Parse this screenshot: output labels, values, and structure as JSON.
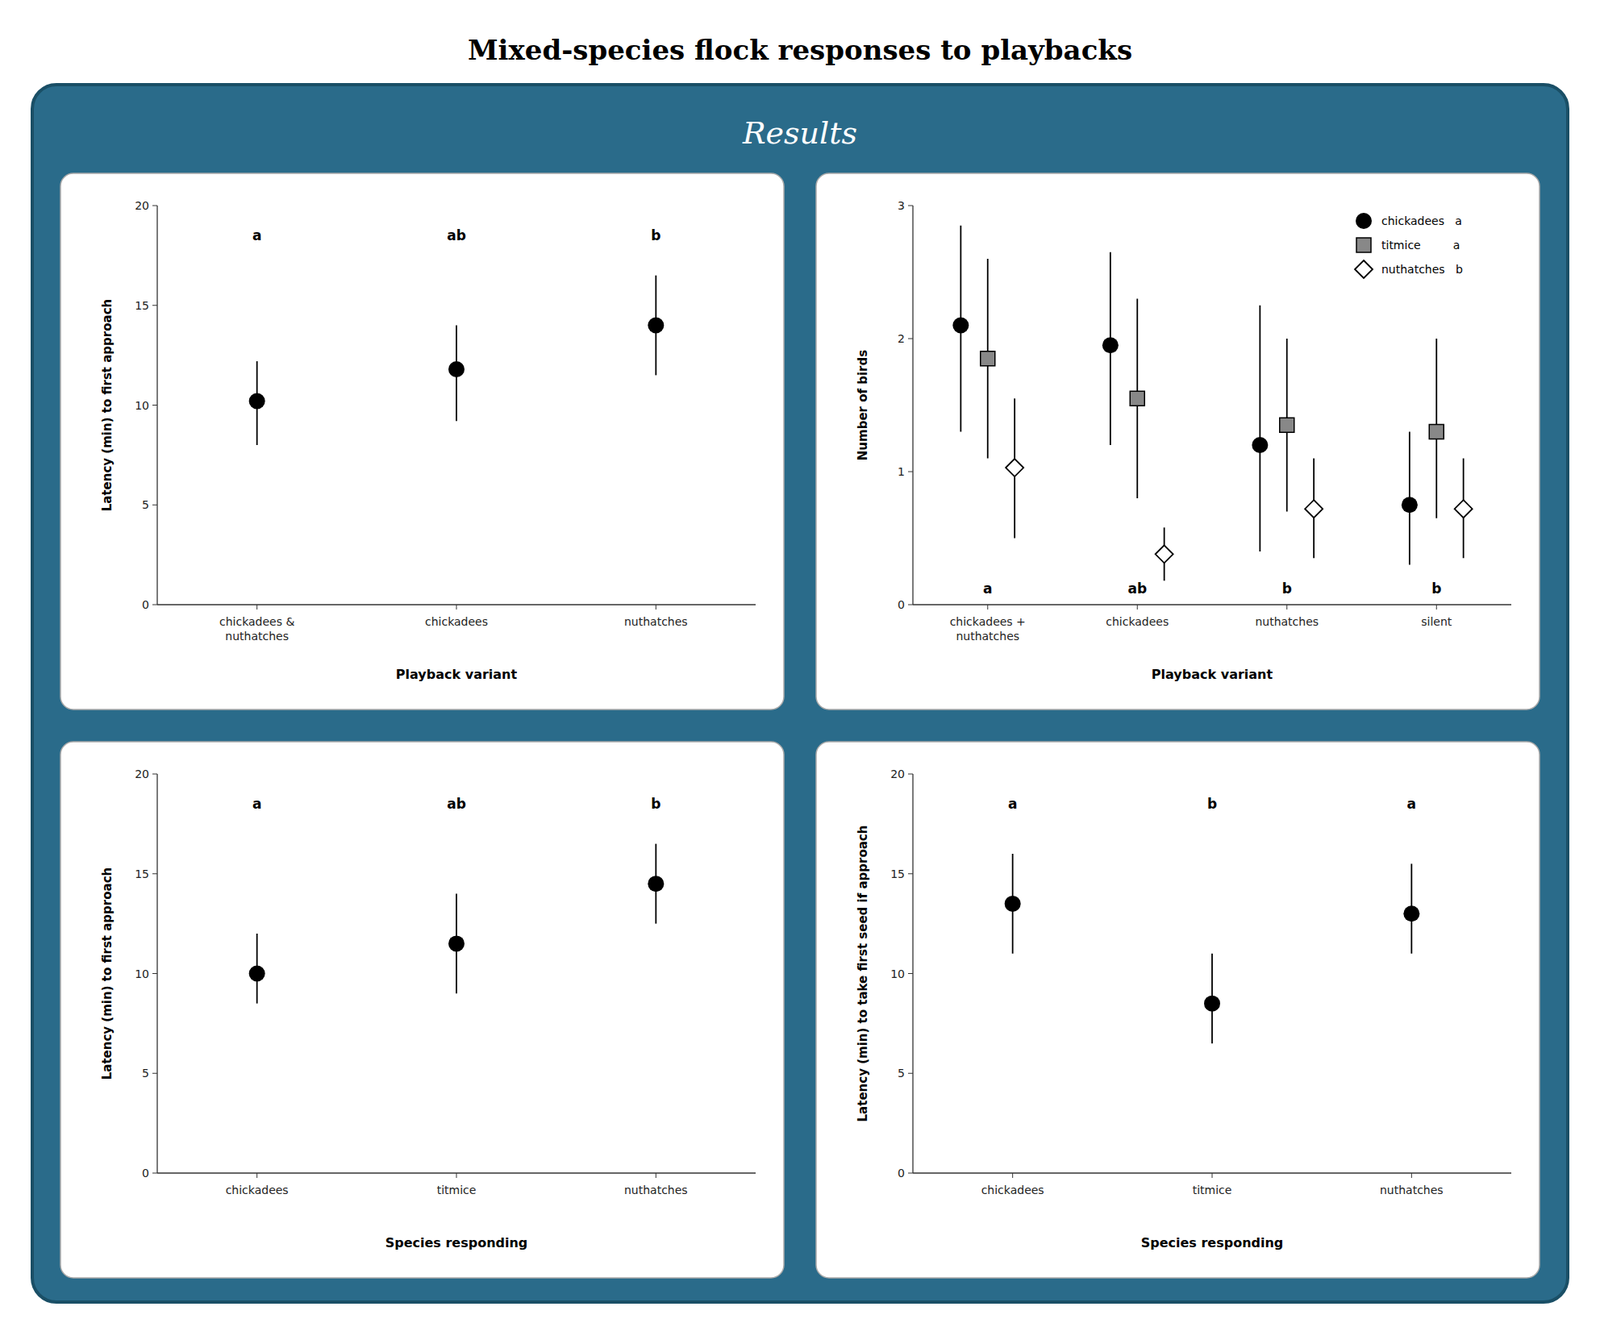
{
  "title": "Mixed-species flock responses to playbacks",
  "subtitle": "Results",
  "chart_data": [
    {
      "type": "errorbar",
      "xlabel": "Playback variant",
      "ylabel": "Latency (min) to first approach",
      "ylim": [
        0,
        20
      ],
      "yticks": [
        0,
        5,
        10,
        15,
        20
      ],
      "grid": false,
      "categories": [
        "chickadees &\nnuthatches",
        "chickadees",
        "nuthatches"
      ],
      "series": [
        {
          "values": [
            10.2,
            11.8,
            14.0
          ],
          "ci_low": [
            8.0,
            9.2,
            11.5
          ],
          "ci_high": [
            12.2,
            14.0,
            16.5
          ],
          "marker": "circle",
          "color": "#000000"
        }
      ],
      "annotations": [
        {
          "text": "a",
          "y": 18.5
        },
        {
          "text": "ab",
          "y": 18.5
        },
        {
          "text": "b",
          "y": 18.5
        }
      ]
    },
    {
      "type": "errorbar",
      "xlabel": "Playback variant",
      "ylabel": "Number of birds",
      "ylim": [
        0,
        3
      ],
      "yticks": [
        0,
        1,
        2,
        3
      ],
      "grid": false,
      "legend": "upper right",
      "categories": [
        "chickadees +\nnuthatches",
        "chickadees",
        "nuthatches",
        "silent"
      ],
      "series": [
        {
          "name": "chickadees   a",
          "values": [
            2.1,
            1.95,
            1.2,
            0.75
          ],
          "ci_low": [
            1.3,
            1.2,
            0.4,
            0.3
          ],
          "ci_high": [
            2.85,
            2.65,
            2.25,
            1.3
          ],
          "marker": "circle",
          "color": "#000000"
        },
        {
          "name": "titmice         a",
          "values": [
            1.85,
            1.55,
            1.35,
            1.3
          ],
          "ci_low": [
            1.1,
            0.8,
            0.7,
            0.65
          ],
          "ci_high": [
            2.6,
            2.3,
            2.0,
            2.0
          ],
          "marker": "square",
          "color": "#888888"
        },
        {
          "name": "nuthatches   b",
          "values": [
            1.03,
            0.38,
            0.72,
            0.72
          ],
          "ci_low": [
            0.5,
            0.18,
            0.35,
            0.35
          ],
          "ci_high": [
            1.55,
            0.58,
            1.1,
            1.1
          ],
          "marker": "diamond",
          "color": "#ffffff"
        }
      ],
      "annotations": [
        {
          "text": "a",
          "y": 0.12
        },
        {
          "text": "ab",
          "y": 0.12
        },
        {
          "text": "b",
          "y": 0.12
        },
        {
          "text": "b",
          "y": 0.12
        }
      ]
    },
    {
      "type": "errorbar",
      "xlabel": "Species responding",
      "ylabel": "Latency (min) to first approach",
      "ylim": [
        0,
        20
      ],
      "yticks": [
        0,
        5,
        10,
        15,
        20
      ],
      "grid": false,
      "categories": [
        "chickadees",
        "titmice",
        "nuthatches"
      ],
      "series": [
        {
          "values": [
            10.0,
            11.5,
            14.5
          ],
          "ci_low": [
            8.5,
            9.0,
            12.5
          ],
          "ci_high": [
            12.0,
            14.0,
            16.5
          ],
          "marker": "circle",
          "color": "#000000"
        }
      ],
      "annotations": [
        {
          "text": "a",
          "y": 18.5
        },
        {
          "text": "ab",
          "y": 18.5
        },
        {
          "text": "b",
          "y": 18.5
        }
      ]
    },
    {
      "type": "errorbar",
      "xlabel": "Species responding",
      "ylabel": "Latency (min) to take first seed if approach",
      "ylim": [
        0,
        20
      ],
      "yticks": [
        0,
        5,
        10,
        15,
        20
      ],
      "grid": false,
      "categories": [
        "chickadees",
        "titmice",
        "nuthatches"
      ],
      "series": [
        {
          "values": [
            13.5,
            8.5,
            13.0
          ],
          "ci_low": [
            11.0,
            6.5,
            11.0
          ],
          "ci_high": [
            16.0,
            11.0,
            15.5
          ],
          "marker": "circle",
          "color": "#000000"
        }
      ],
      "annotations": [
        {
          "text": "a",
          "y": 18.5
        },
        {
          "text": "b",
          "y": 18.5
        },
        {
          "text": "a",
          "y": 18.5
        }
      ]
    }
  ]
}
